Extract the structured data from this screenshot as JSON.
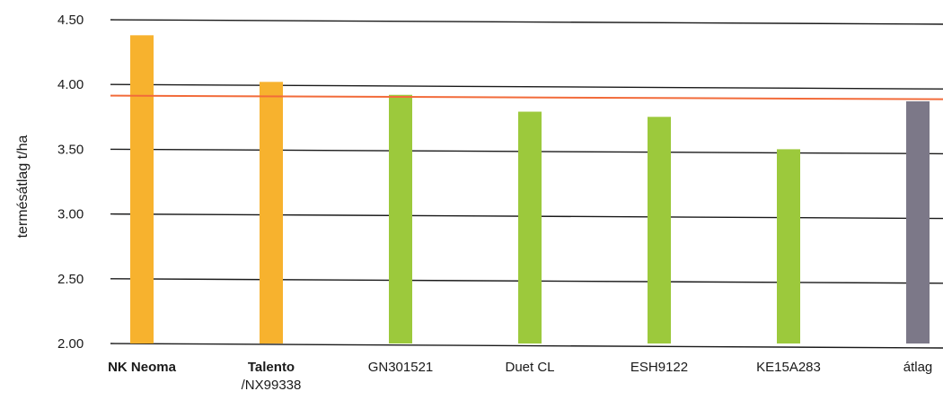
{
  "chart_data": {
    "type": "bar",
    "title": "",
    "xlabel": "",
    "ylabel": "termésátlag t/ha",
    "ylim": [
      2.0,
      4.5
    ],
    "yticks": [
      "2.00",
      "2.50",
      "3.00",
      "3.50",
      "4.00",
      "4.50"
    ],
    "grid": true,
    "categories": [
      {
        "lines": [
          "NK Neoma"
        ],
        "bold": true
      },
      {
        "lines": [
          "Talento",
          "/NX99338"
        ],
        "bold": true
      },
      {
        "lines": [
          "GN301521"
        ],
        "bold": false
      },
      {
        "lines": [
          "Duet CL"
        ],
        "bold": false
      },
      {
        "lines": [
          "ESH9122"
        ],
        "bold": false
      },
      {
        "lines": [
          "KE15A283"
        ],
        "bold": false
      },
      {
        "lines": [
          "átlag"
        ],
        "bold": false
      }
    ],
    "values": [
      4.38,
      4.02,
      3.92,
      3.79,
      3.75,
      3.5,
      3.87
    ],
    "bar_colors": [
      "#f7b22e",
      "#f7b22e",
      "#9cc93c",
      "#9cc93c",
      "#9cc93c",
      "#9cc93c",
      "#7c7888"
    ],
    "reference_line": {
      "value": 3.9,
      "color": "#f26b3a"
    },
    "grid_color": "#1a1a1a"
  }
}
